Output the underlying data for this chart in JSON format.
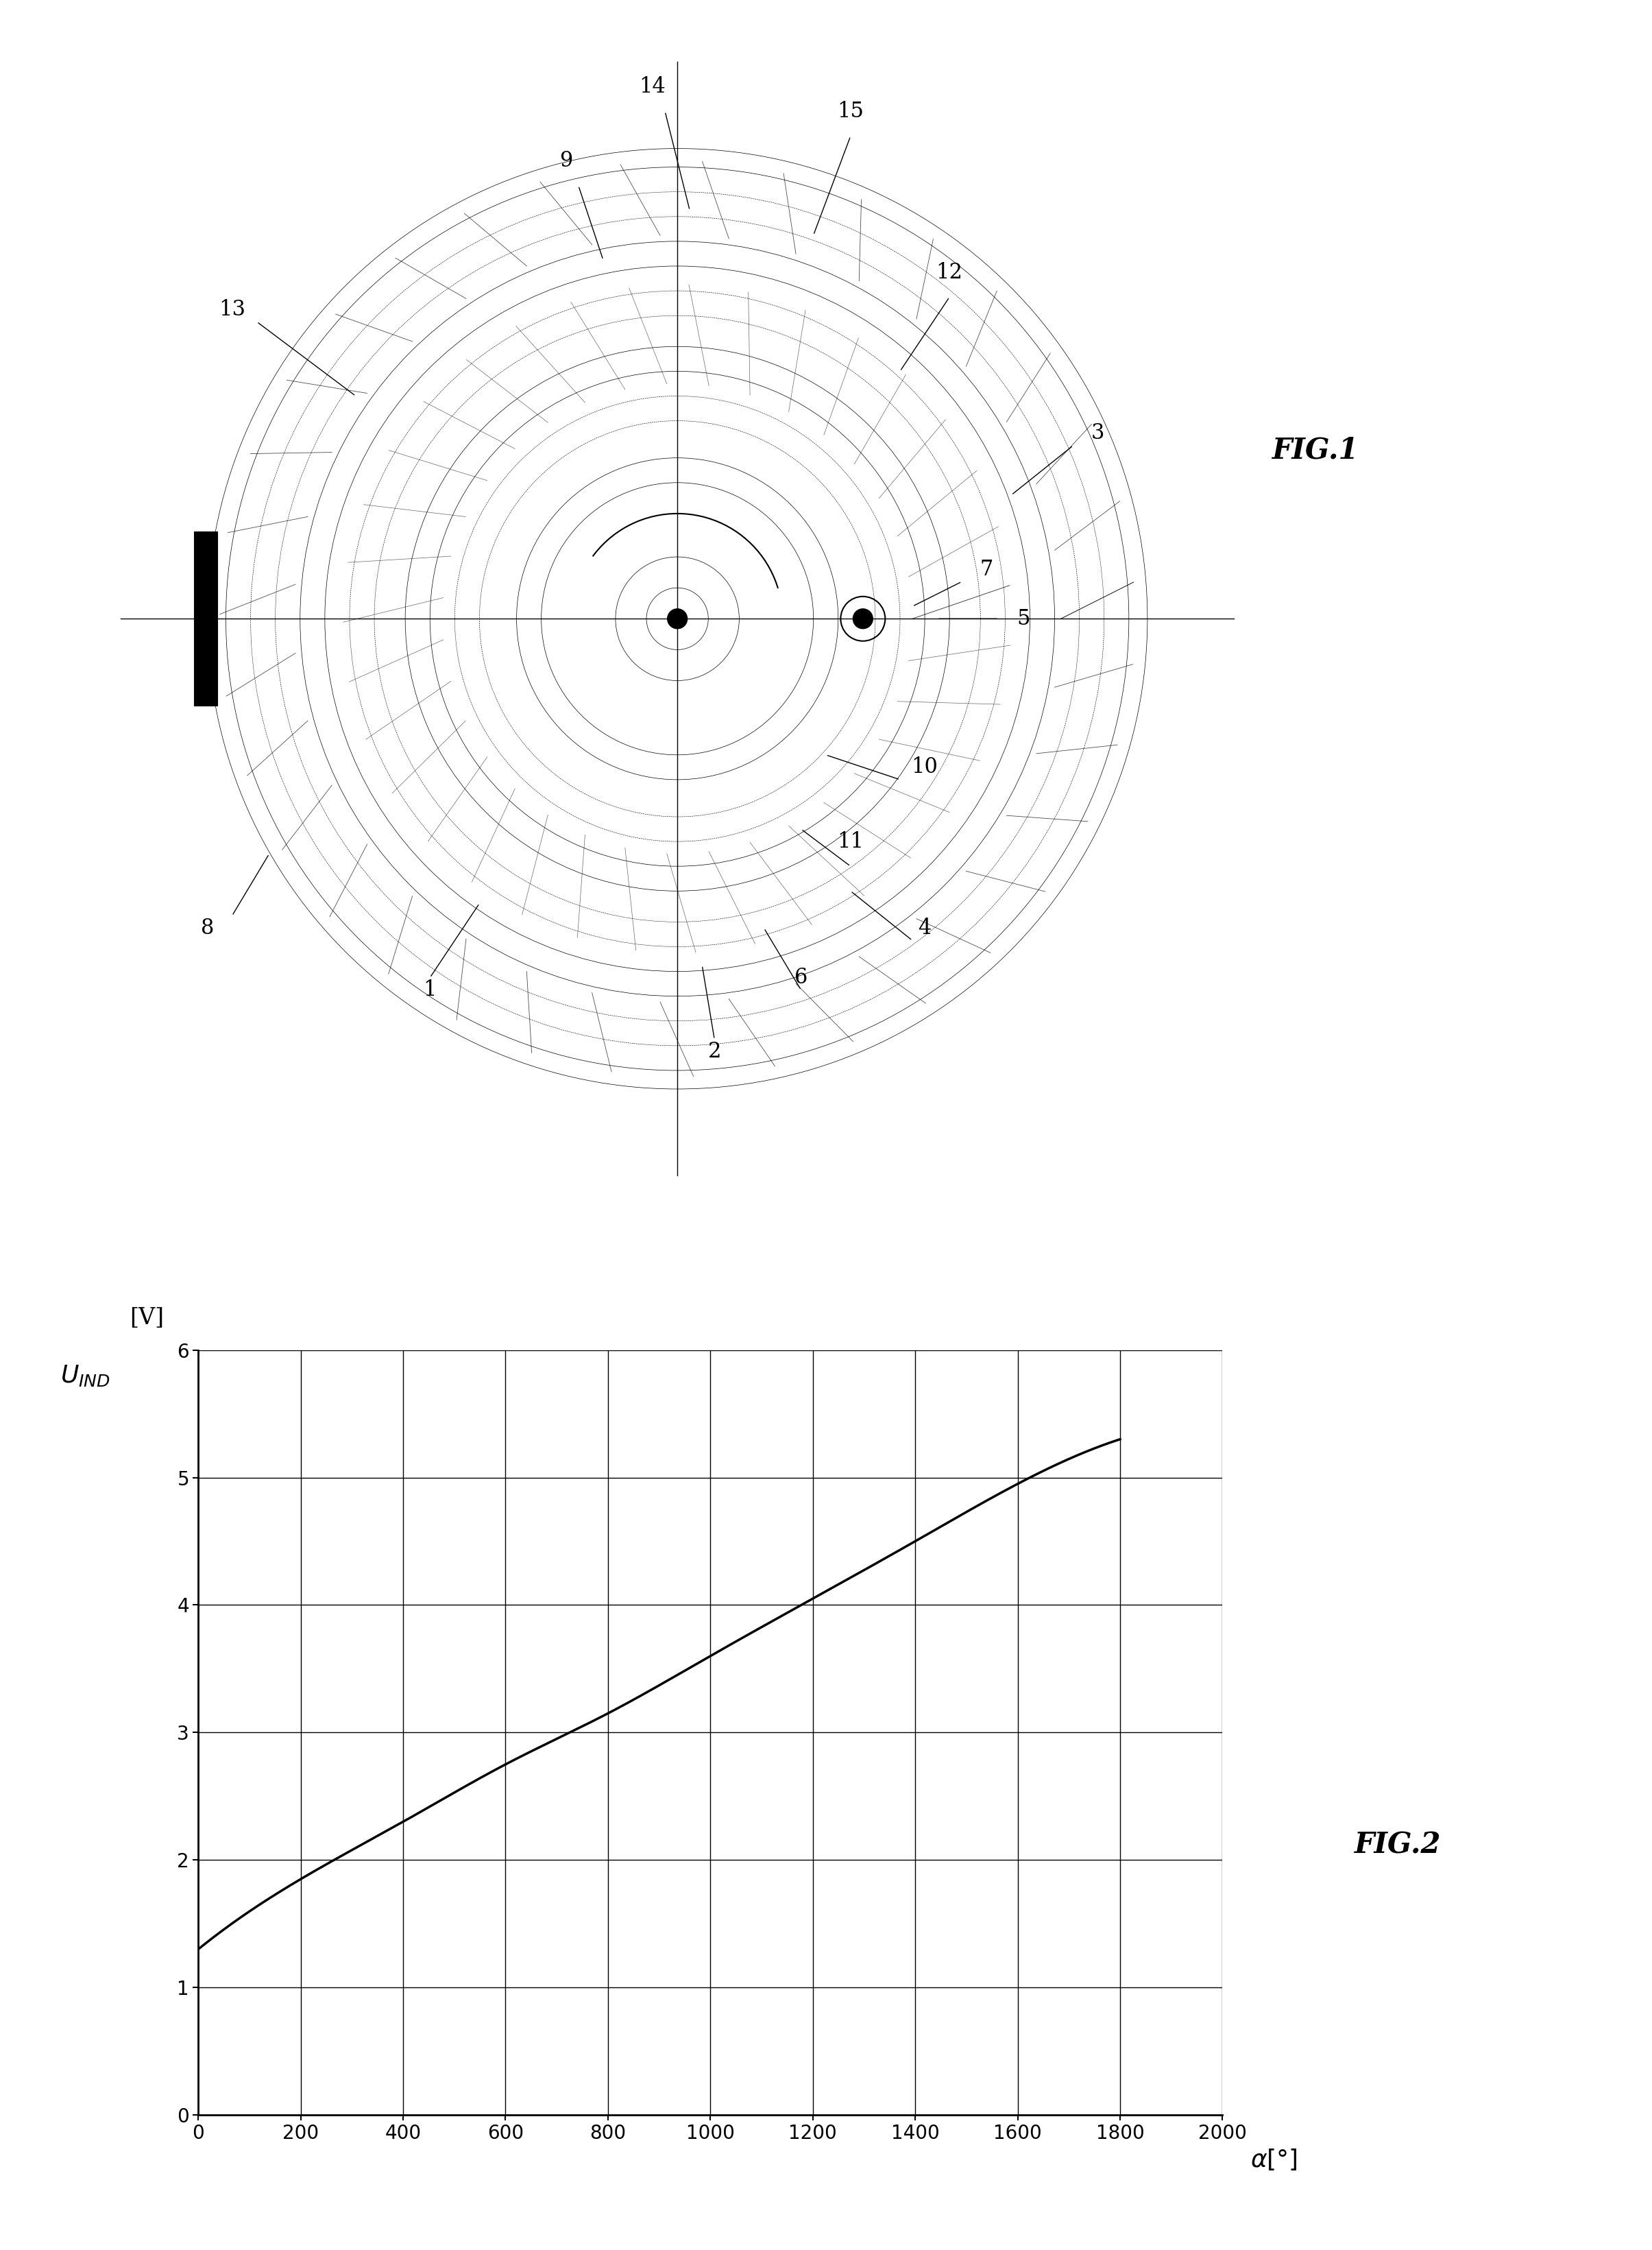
{
  "fig2_x": [
    0,
    200,
    400,
    600,
    800,
    1000,
    1200,
    1400,
    1600,
    1800
  ],
  "fig2_y": [
    1.3,
    1.85,
    2.3,
    2.75,
    3.15,
    3.6,
    4.05,
    4.5,
    4.95,
    5.3
  ],
  "fig2_xlabel": "α[°]",
  "fig2_ylabel_main": "U",
  "fig2_ylabel_sub": "IND",
  "fig2_ylabel_unit": "[V]",
  "fig2_xlim": [
    0,
    2000
  ],
  "fig2_ylim": [
    0,
    6
  ],
  "fig2_xticks": [
    0,
    200,
    400,
    600,
    800,
    1000,
    1200,
    1400,
    1600,
    1800,
    2000
  ],
  "fig2_yticks": [
    0,
    1,
    2,
    3,
    4,
    5,
    6
  ],
  "fig1_label": "FIG.1",
  "fig2_label": "FIG.2",
  "bg_color": "#ffffff",
  "line_color": "#000000"
}
